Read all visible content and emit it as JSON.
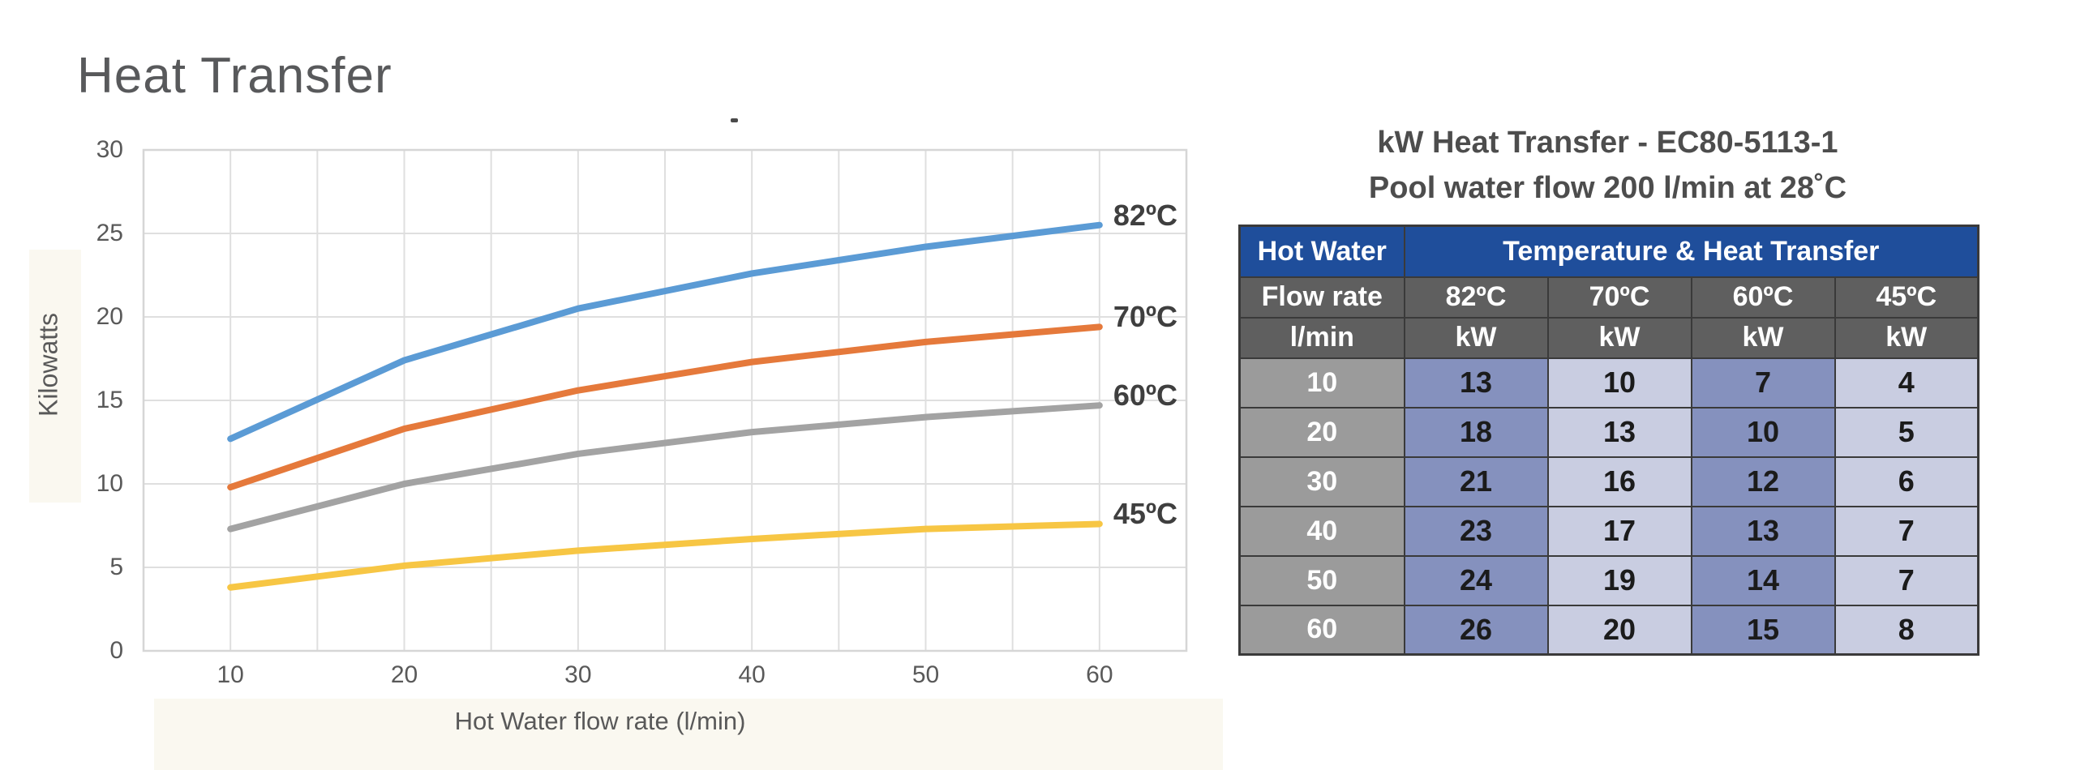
{
  "chart_data": [
    {
      "type": "line",
      "title": "Heat Transfer",
      "xlabel": "Hot Water flow rate (l/min)",
      "ylabel": "Kilowatts",
      "x": [
        10,
        20,
        30,
        40,
        50,
        60
      ],
      "series": [
        {
          "name": "82ºC",
          "color": "#5b9bd5",
          "values": [
            12.7,
            17.4,
            20.5,
            22.6,
            24.2,
            25.5
          ]
        },
        {
          "name": "70ºC",
          "color": "#e5793b",
          "values": [
            9.8,
            13.3,
            15.6,
            17.3,
            18.5,
            19.4
          ]
        },
        {
          "name": "60ºC",
          "color": "#a3a3a3",
          "values": [
            7.3,
            10.0,
            11.8,
            13.1,
            14.0,
            14.7
          ]
        },
        {
          "name": "45ºC",
          "color": "#f7c644",
          "values": [
            3.8,
            5.1,
            6.0,
            6.7,
            7.3,
            7.6
          ]
        }
      ],
      "x_ticks": [
        10,
        20,
        30,
        40,
        50,
        60
      ],
      "y_ticks": [
        0,
        5,
        10,
        15,
        20,
        25,
        30
      ],
      "xlim": [
        5,
        65
      ],
      "ylim": [
        0,
        30
      ],
      "grid": true,
      "grid_step": 5,
      "legend_position": "series-end-labels-right",
      "style": {
        "grid_color": "#dfdfdf",
        "plot_border_color": "#d6d6d6",
        "axis_text_color": "#595959",
        "series_label_color": "#3f3f3f",
        "line_width": 8
      }
    },
    {
      "type": "table",
      "title": [
        "kW Heat Transfer - EC80-5113-1",
        "Pool water flow 200 l/min at 28˚C"
      ],
      "header": {
        "top_left": "Hot Water",
        "group": "Temperature & Heat Transfer",
        "row2": [
          "Flow rate",
          "82ºC",
          "70ºC",
          "60ºC",
          "45ºC"
        ],
        "row3": [
          "l/min",
          "kW",
          "kW",
          "kW",
          "kW"
        ]
      },
      "rows": [
        [
          10,
          13,
          10,
          7,
          4
        ],
        [
          20,
          18,
          13,
          10,
          5
        ],
        [
          30,
          21,
          16,
          12,
          6
        ],
        [
          40,
          23,
          17,
          13,
          7
        ],
        [
          50,
          24,
          19,
          14,
          7
        ],
        [
          60,
          26,
          20,
          15,
          8
        ]
      ],
      "style": {
        "header_blue": "#1f4e9b",
        "header_gray": "#5f5f5f",
        "row_label_gray": "#9b9b9b",
        "col_slate": "#8591be",
        "col_lavender": "#c9cde1",
        "border": "#3a3a3a",
        "title_color": "#4d4d4d",
        "value_text": "#1b1b1b"
      }
    }
  ]
}
